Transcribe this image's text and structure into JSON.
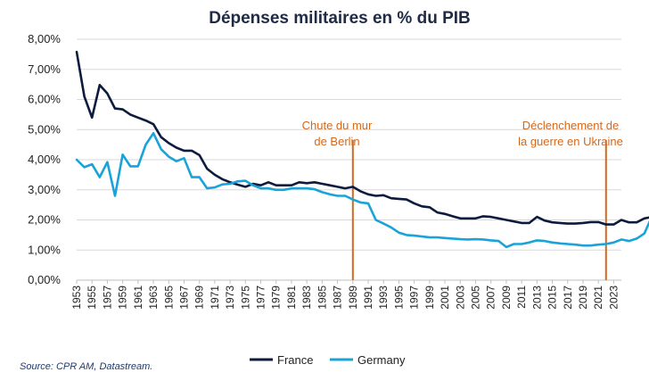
{
  "chart_data": {
    "type": "line",
    "title": "Dépenses militaires en % du PIB",
    "xlabel": "",
    "ylabel": "",
    "ylim": [
      0,
      8
    ],
    "ytick_labels": [
      "0,00%",
      "1,00%",
      "2,00%",
      "3,00%",
      "4,00%",
      "5,00%",
      "6,00%",
      "7,00%",
      "8,00%"
    ],
    "x_start": 1953,
    "x_end": 2024,
    "xtick_labels": [
      "1953",
      "1955",
      "1957",
      "1959",
      "1961",
      "1963",
      "1965",
      "1967",
      "1969",
      "1971",
      "1973",
      "1975",
      "1977",
      "1979",
      "1981",
      "1983",
      "1985",
      "1987",
      "1989",
      "1991",
      "1993",
      "1995",
      "1997",
      "1999",
      "2001",
      "2003",
      "2005",
      "2007",
      "2009",
      "2011",
      "2013",
      "2015",
      "2017",
      "2019",
      "2021",
      "2023"
    ],
    "series": [
      {
        "name": "France",
        "color": "#0d1b3e",
        "values": [
          7.58,
          6.1,
          5.4,
          6.48,
          6.2,
          5.7,
          5.67,
          5.5,
          5.4,
          5.3,
          5.18,
          4.75,
          4.55,
          4.4,
          4.3,
          4.3,
          4.15,
          3.7,
          3.5,
          3.35,
          3.25,
          3.17,
          3.1,
          3.2,
          3.15,
          3.25,
          3.15,
          3.15,
          3.15,
          3.25,
          3.22,
          3.25,
          3.2,
          3.15,
          3.1,
          3.05,
          3.1,
          2.95,
          2.85,
          2.8,
          2.82,
          2.72,
          2.7,
          2.68,
          2.55,
          2.45,
          2.42,
          2.25,
          2.2,
          2.12,
          2.05,
          2.05,
          2.05,
          2.12,
          2.1,
          2.05,
          2.0,
          1.95,
          1.9,
          1.9,
          2.1,
          1.98,
          1.92,
          1.9,
          1.88,
          1.88,
          1.9,
          1.93,
          1.93,
          1.85,
          1.85,
          2.0,
          1.92,
          1.92,
          2.05,
          2.1
        ]
      },
      {
        "name": "Germany",
        "color": "#1aa3d9",
        "values": [
          4.0,
          3.75,
          3.85,
          3.42,
          3.92,
          2.8,
          4.17,
          3.78,
          3.78,
          4.5,
          4.88,
          4.35,
          4.1,
          3.95,
          4.05,
          3.42,
          3.42,
          3.05,
          3.08,
          3.18,
          3.2,
          3.28,
          3.3,
          3.15,
          3.05,
          3.05,
          3.0,
          3.0,
          3.05,
          3.05,
          3.05,
          3.02,
          2.92,
          2.85,
          2.8,
          2.8,
          2.68,
          2.58,
          2.55,
          2.0,
          1.88,
          1.75,
          1.58,
          1.5,
          1.48,
          1.45,
          1.42,
          1.42,
          1.4,
          1.38,
          1.36,
          1.35,
          1.36,
          1.35,
          1.32,
          1.3,
          1.1,
          1.2,
          1.2,
          1.25,
          1.32,
          1.3,
          1.25,
          1.22,
          1.2,
          1.18,
          1.15,
          1.15,
          1.18,
          1.2,
          1.25,
          1.35,
          1.3,
          1.38,
          1.55,
          2.12
        ]
      }
    ],
    "annotations": [
      {
        "lines": [
          "Chute du mur",
          "de Berlin"
        ],
        "year": 1989,
        "color": "#d2691e"
      },
      {
        "lines": [
          "Déclenchement de",
          "la guerre en Ukraine"
        ],
        "year": 2022,
        "color": "#d2691e"
      }
    ],
    "legend": [
      "France",
      "Germany"
    ],
    "legend_position": "bottom",
    "source": "Source: CPR AM, Datastream."
  }
}
